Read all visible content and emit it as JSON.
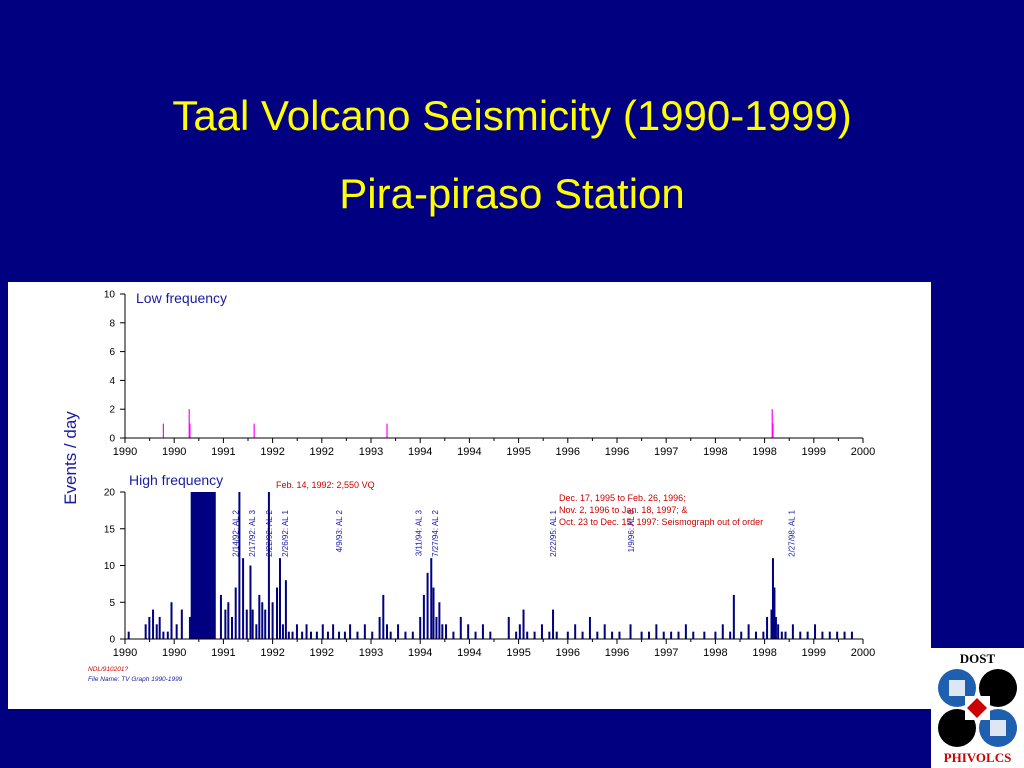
{
  "slide": {
    "title_line1": "Taal Volcano Seismicity (1990-1999)",
    "title_line2": "Pira-piraso Station",
    "background": "#000080",
    "title_color": "#ffff00"
  },
  "colors": {
    "low_freq_bars": "#ff00ff",
    "high_freq_bars": "#000080",
    "axis": "#000000",
    "label_blue": "#1a1aa0",
    "annotation_red": "#cc0000"
  },
  "logo": {
    "top_text": "DOST",
    "bottom_text": "PHIVOLCS"
  },
  "chart_data": [
    {
      "type": "bar",
      "panel_label": "Low frequency",
      "ylabel": "Events / day",
      "ylim": [
        0,
        10
      ],
      "yticks": [
        "0",
        "2",
        "4",
        "6",
        "8",
        "10"
      ],
      "xlim": [
        1990.0,
        2000.0
      ],
      "xtick_labels": [
        "1990",
        "1990",
        "1991",
        "1992",
        "1992",
        "1993",
        "1994",
        "1994",
        "1995",
        "1996",
        "1996",
        "1997",
        "1998",
        "1998",
        "1999",
        "2000"
      ],
      "series": [
        {
          "x": [
            1990.52,
            1990.87,
            1990.88,
            1991.75,
            1993.55,
            1998.77,
            1998.78
          ],
          "y": [
            1,
            2,
            1,
            1,
            1,
            2,
            1
          ]
        }
      ]
    },
    {
      "type": "bar",
      "panel_label": "High frequency",
      "ylim": [
        0,
        20
      ],
      "yticks": [
        "0",
        "5",
        "10",
        "15",
        "20"
      ],
      "xlim": [
        1990.0,
        2000.0
      ],
      "xtick_labels": [
        "1990",
        "1990",
        "1991",
        "1992",
        "1992",
        "1993",
        "1994",
        "1994",
        "1995",
        "1996",
        "1996",
        "1997",
        "1998",
        "1998",
        "1999",
        "2000"
      ],
      "out_of_range_block": {
        "from": 1990.89,
        "to": 1991.23,
        "note": "Feb. 14, 1992: 2,550 VQ"
      },
      "series": [
        {
          "x": [
            1990.05,
            1990.28,
            1990.33,
            1990.38,
            1990.43,
            1990.47,
            1990.52,
            1990.58,
            1990.63,
            1990.7,
            1990.77,
            1990.88,
            1990.95,
            1991.05,
            1991.15,
            1991.3,
            1991.36,
            1991.4,
            1991.45,
            1991.5,
            1991.55,
            1991.6,
            1991.65,
            1991.7,
            1991.73,
            1991.78,
            1991.82,
            1991.86,
            1991.9,
            1991.95,
            1992.0,
            1992.06,
            1992.1,
            1992.14,
            1992.18,
            1992.22,
            1992.27,
            1992.33,
            1992.4,
            1992.46,
            1992.52,
            1992.6,
            1992.68,
            1992.75,
            1992.82,
            1992.9,
            1992.98,
            1993.05,
            1993.15,
            1993.25,
            1993.35,
            1993.45,
            1993.5,
            1993.55,
            1993.6,
            1993.7,
            1993.8,
            1993.9,
            1994.0,
            1994.05,
            1994.1,
            1994.15,
            1994.18,
            1994.22,
            1994.26,
            1994.3,
            1994.35,
            1994.45,
            1994.55,
            1994.65,
            1994.75,
            1994.85,
            1994.95,
            1995.2,
            1995.3,
            1995.35,
            1995.4,
            1995.45,
            1995.55,
            1995.65,
            1995.75,
            1995.8,
            1995.85,
            1996.0,
            1996.1,
            1996.2,
            1996.3,
            1996.4,
            1996.5,
            1996.6,
            1996.7,
            1996.85,
            1997.0,
            1997.1,
            1997.2,
            1997.3,
            1997.4,
            1997.5,
            1997.6,
            1997.7,
            1997.85,
            1998.0,
            1998.1,
            1998.2,
            1998.25,
            1998.35,
            1998.45,
            1998.55,
            1998.65,
            1998.7,
            1998.76,
            1998.78,
            1998.8,
            1998.82,
            1998.85,
            1998.9,
            1998.95,
            1999.05,
            1999.15,
            1999.25,
            1999.35,
            1999.45,
            1999.55,
            1999.65,
            1999.75,
            1999.85
          ],
          "y": [
            1,
            2,
            3,
            4,
            2,
            3,
            1,
            1,
            5,
            2,
            4,
            3,
            1,
            2,
            3,
            6,
            4,
            5,
            3,
            7,
            20,
            11,
            4,
            10,
            4,
            2,
            6,
            5,
            4,
            20,
            5,
            7,
            11,
            2,
            8,
            1,
            1,
            2,
            1,
            2,
            1,
            1,
            2,
            1,
            2,
            1,
            1,
            2,
            1,
            2,
            1,
            3,
            6,
            2,
            1,
            2,
            1,
            1,
            3,
            6,
            9,
            11,
            7,
            3,
            5,
            2,
            2,
            1,
            3,
            2,
            1,
            2,
            1,
            3,
            1,
            2,
            4,
            1,
            1,
            2,
            1,
            4,
            1,
            1,
            2,
            1,
            3,
            1,
            2,
            1,
            1,
            2,
            1,
            1,
            2,
            1,
            1,
            1,
            2,
            1,
            1,
            1,
            2,
            1,
            6,
            1,
            2,
            1,
            1,
            3,
            4,
            11,
            7,
            3,
            2,
            1,
            1,
            2,
            1,
            1,
            2,
            1,
            1,
            1,
            1,
            1
          ]
        }
      ],
      "event_labels": [
        {
          "x": 1991.54,
          "text": "2/14/92: AL 2"
        },
        {
          "x": 1991.76,
          "text": "2/17/92: AL 3"
        },
        {
          "x": 1991.99,
          "text": "2/22/92: AL 2"
        },
        {
          "x": 1992.21,
          "text": "2/26/92: AL 1"
        },
        {
          "x": 1992.94,
          "text": "4/9/93: AL 2"
        },
        {
          "x": 1994.02,
          "text": "3/11/94: AL 3"
        },
        {
          "x": 1994.24,
          "text": "7/27/94: AL 2"
        },
        {
          "x": 1995.84,
          "text": "2/22/95: AL 1"
        },
        {
          "x": 1996.9,
          "text": "1/9/96: AL 0"
        },
        {
          "x": 1999.07,
          "text": "2/27/98: AL 1"
        }
      ],
      "note_lines": [
        "Dec. 17, 1995 to Feb. 26, 1996;",
        "Nov. 2, 1996 to Jan. 18, 1997; &",
        "Oct. 23 to Dec. 15, 1997: Seismograph out of order"
      ],
      "footer": [
        "NDL/910201?",
        "File Name: TV Graph 1990-1999"
      ]
    }
  ]
}
